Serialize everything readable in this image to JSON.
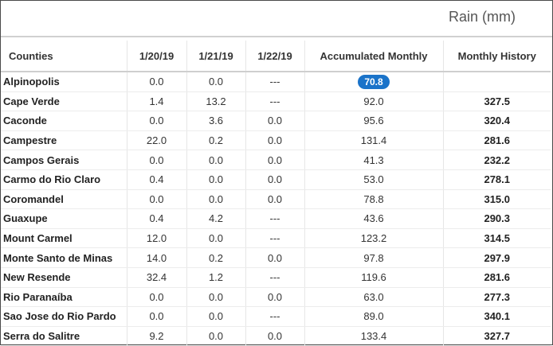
{
  "title": "Rain (mm)",
  "columns": [
    "Counties",
    "1/20/19",
    "1/21/19",
    "1/22/19",
    "Accumulated Monthly",
    "Monthly History"
  ],
  "rows": [
    {
      "county": "Alpinopolis",
      "d1": "0.0",
      "d2": "0.0",
      "d3": "---",
      "acc": "70.8",
      "hist": "",
      "highlight": true
    },
    {
      "county": "Cape Verde",
      "d1": "1.4",
      "d2": "13.2",
      "d3": "---",
      "acc": "92.0",
      "hist": "327.5"
    },
    {
      "county": "Caconde",
      "d1": "0.0",
      "d2": "3.6",
      "d3": "0.0",
      "acc": "95.6",
      "hist": "320.4"
    },
    {
      "county": "Campestre",
      "d1": "22.0",
      "d2": "0.2",
      "d3": "0.0",
      "acc": "131.4",
      "hist": "281.6"
    },
    {
      "county": "Campos Gerais",
      "d1": "0.0",
      "d2": "0.0",
      "d3": "0.0",
      "acc": "41.3",
      "hist": "232.2"
    },
    {
      "county": "Carmo do Rio Claro",
      "d1": "0.4",
      "d2": "0.0",
      "d3": "0.0",
      "acc": "53.0",
      "hist": "278.1"
    },
    {
      "county": "Coromandel",
      "d1": "0.0",
      "d2": "0.0",
      "d3": "0.0",
      "acc": "78.8",
      "hist": "315.0"
    },
    {
      "county": "Guaxupe",
      "d1": "0.4",
      "d2": "4.2",
      "d3": "---",
      "acc": "43.6",
      "hist": "290.3"
    },
    {
      "county": "Mount Carmel",
      "d1": "12.0",
      "d2": "0.0",
      "d3": "---",
      "acc": "123.2",
      "hist": "314.5"
    },
    {
      "county": "Monte Santo de Minas",
      "d1": "14.0",
      "d2": "0.2",
      "d3": "0.0",
      "acc": "97.8",
      "hist": "297.9"
    },
    {
      "county": "New Resende",
      "d1": "32.4",
      "d2": "1.2",
      "d3": "---",
      "acc": "119.6",
      "hist": "281.6"
    },
    {
      "county": "Rio Paranaíba",
      "d1": "0.0",
      "d2": "0.0",
      "d3": "0.0",
      "acc": "63.0",
      "hist": "277.3"
    },
    {
      "county": "Sao Jose do Rio Pardo",
      "d1": "0.0",
      "d2": "0.0",
      "d3": "---",
      "acc": "89.0",
      "hist": "340.1"
    },
    {
      "county": "Serra do Salitre",
      "d1": "9.2",
      "d2": "0.0",
      "d3": "0.0",
      "acc": "133.4",
      "hist": "327.7"
    }
  ],
  "colors": {
    "badge": "#1a73c9",
    "text": "#333333"
  }
}
